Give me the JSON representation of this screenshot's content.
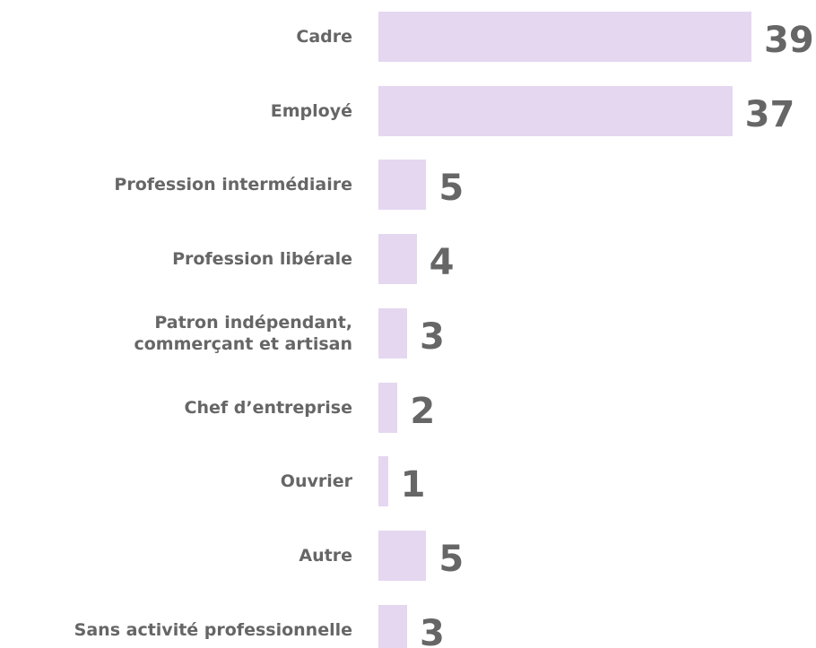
{
  "chart_data": {
    "type": "bar",
    "orientation": "horizontal",
    "color": "#e5d7f0",
    "categories": [
      "Cadre",
      "Employé",
      "Profession intermédiaire",
      "Profession libérale",
      "Patron indépendant,\ncommerçant et artisan",
      "Chef d’entreprise",
      "Ouvrier",
      "Autre",
      "Sans activité professionnelle"
    ],
    "values": [
      39,
      37,
      5,
      4,
      3,
      2,
      1,
      5,
      3
    ]
  }
}
